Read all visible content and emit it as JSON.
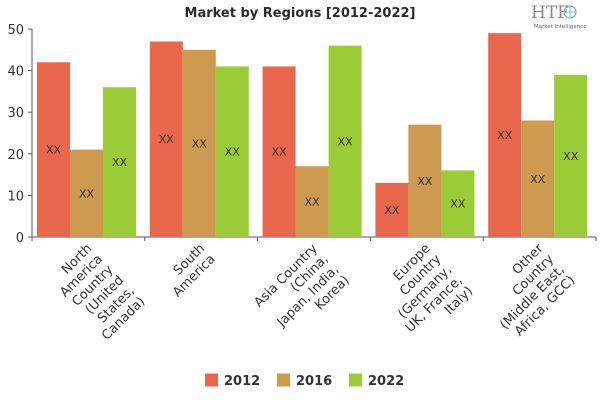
{
  "chart_data": {
    "type": "bar",
    "title": "Market by Regions [2012-2022]",
    "categories": [
      "North America Country (United States, Canada)",
      "South America",
      "Asia Country (China, Japan, India, Korea)",
      "Europe Country (Germany, UK, France, Italy)",
      "Other Country (Middle East, Africa, GCC)"
    ],
    "category_lines": [
      [
        "North",
        "America",
        "Country",
        "(United",
        "States,",
        "Canada)"
      ],
      [
        "South",
        "America"
      ],
      [
        "Asia Country",
        "(China,",
        "Japan, India,",
        "Korea)"
      ],
      [
        "Europe",
        "Country",
        "(Germany,",
        "UK, France,",
        "Italy)"
      ],
      [
        "Other",
        "Country",
        "(Middle East,",
        "Africa, GCC)"
      ]
    ],
    "series": [
      {
        "name": "2012",
        "color": "#e8674d",
        "values": [
          42,
          47,
          41,
          13,
          49
        ]
      },
      {
        "name": "2016",
        "color": "#cd9a4f",
        "values": [
          21,
          45,
          17,
          27,
          28
        ]
      },
      {
        "name": "2022",
        "color": "#9bcc37",
        "values": [
          36,
          41,
          46,
          16,
          39
        ]
      }
    ],
    "data_label": "XX",
    "yticks": [
      0,
      10,
      20,
      30,
      40,
      50
    ],
    "ylim": [
      0,
      50
    ],
    "xlabel": "",
    "ylabel": "",
    "grid": false,
    "legend_position": "bottom"
  },
  "logo": {
    "text": "HTF",
    "subtitle": "Market Intelligence"
  }
}
